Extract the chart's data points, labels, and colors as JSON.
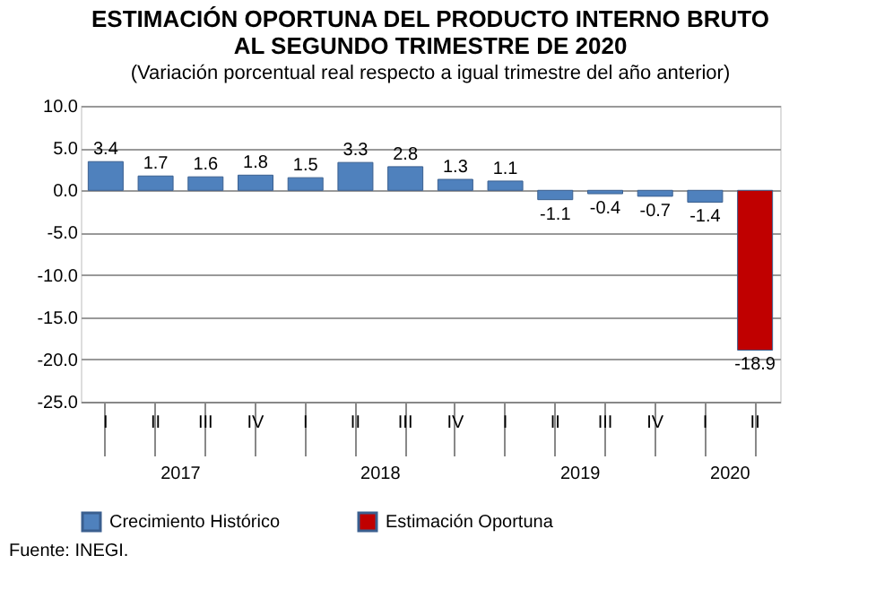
{
  "chart_data": {
    "type": "bar",
    "title": "ESTIMACIÓN OPORTUNA DEL PRODUCTO INTERNO BRUTO\nAL SEGUNDO TRIMESTRE DE 2020",
    "subtitle": "(Variación porcentual real respecto a igual trimestre del año anterior)",
    "categories": [
      "I",
      "II",
      "III",
      "IV",
      "I",
      "II",
      "III",
      "IV",
      "I",
      "II",
      "III",
      "IV",
      "I",
      "II"
    ],
    "series": [
      {
        "name": "Crecimiento Histórico",
        "color": "#4f81bd",
        "values": [
          3.4,
          1.7,
          1.6,
          1.8,
          1.5,
          3.3,
          2.8,
          1.3,
          1.1,
          -1.1,
          -0.4,
          -0.7,
          -1.4,
          null
        ]
      },
      {
        "name": "Estimación Oportuna",
        "color": "#c00000",
        "values": [
          null,
          null,
          null,
          null,
          null,
          null,
          null,
          null,
          null,
          null,
          null,
          null,
          null,
          -18.9
        ]
      }
    ],
    "ylim": [
      -25,
      10
    ],
    "yticks": [
      {
        "value": -25,
        "label": "-25.0"
      },
      {
        "value": -20,
        "label": "-20.0"
      },
      {
        "value": -15,
        "label": "-15.0"
      },
      {
        "value": -10,
        "label": "-10.0"
      },
      {
        "value": -5,
        "label": "-5.0"
      },
      {
        "value": 0,
        "label": "0.0"
      },
      {
        "value": 5,
        "label": "5.0"
      },
      {
        "value": 10,
        "label": "10.0"
      }
    ],
    "grid": "y",
    "legend": "bottom",
    "data_labels": true,
    "annotations": [
      "2017",
      "2018",
      "2019",
      "2020",
      "Fuente: INEGI."
    ]
  }
}
